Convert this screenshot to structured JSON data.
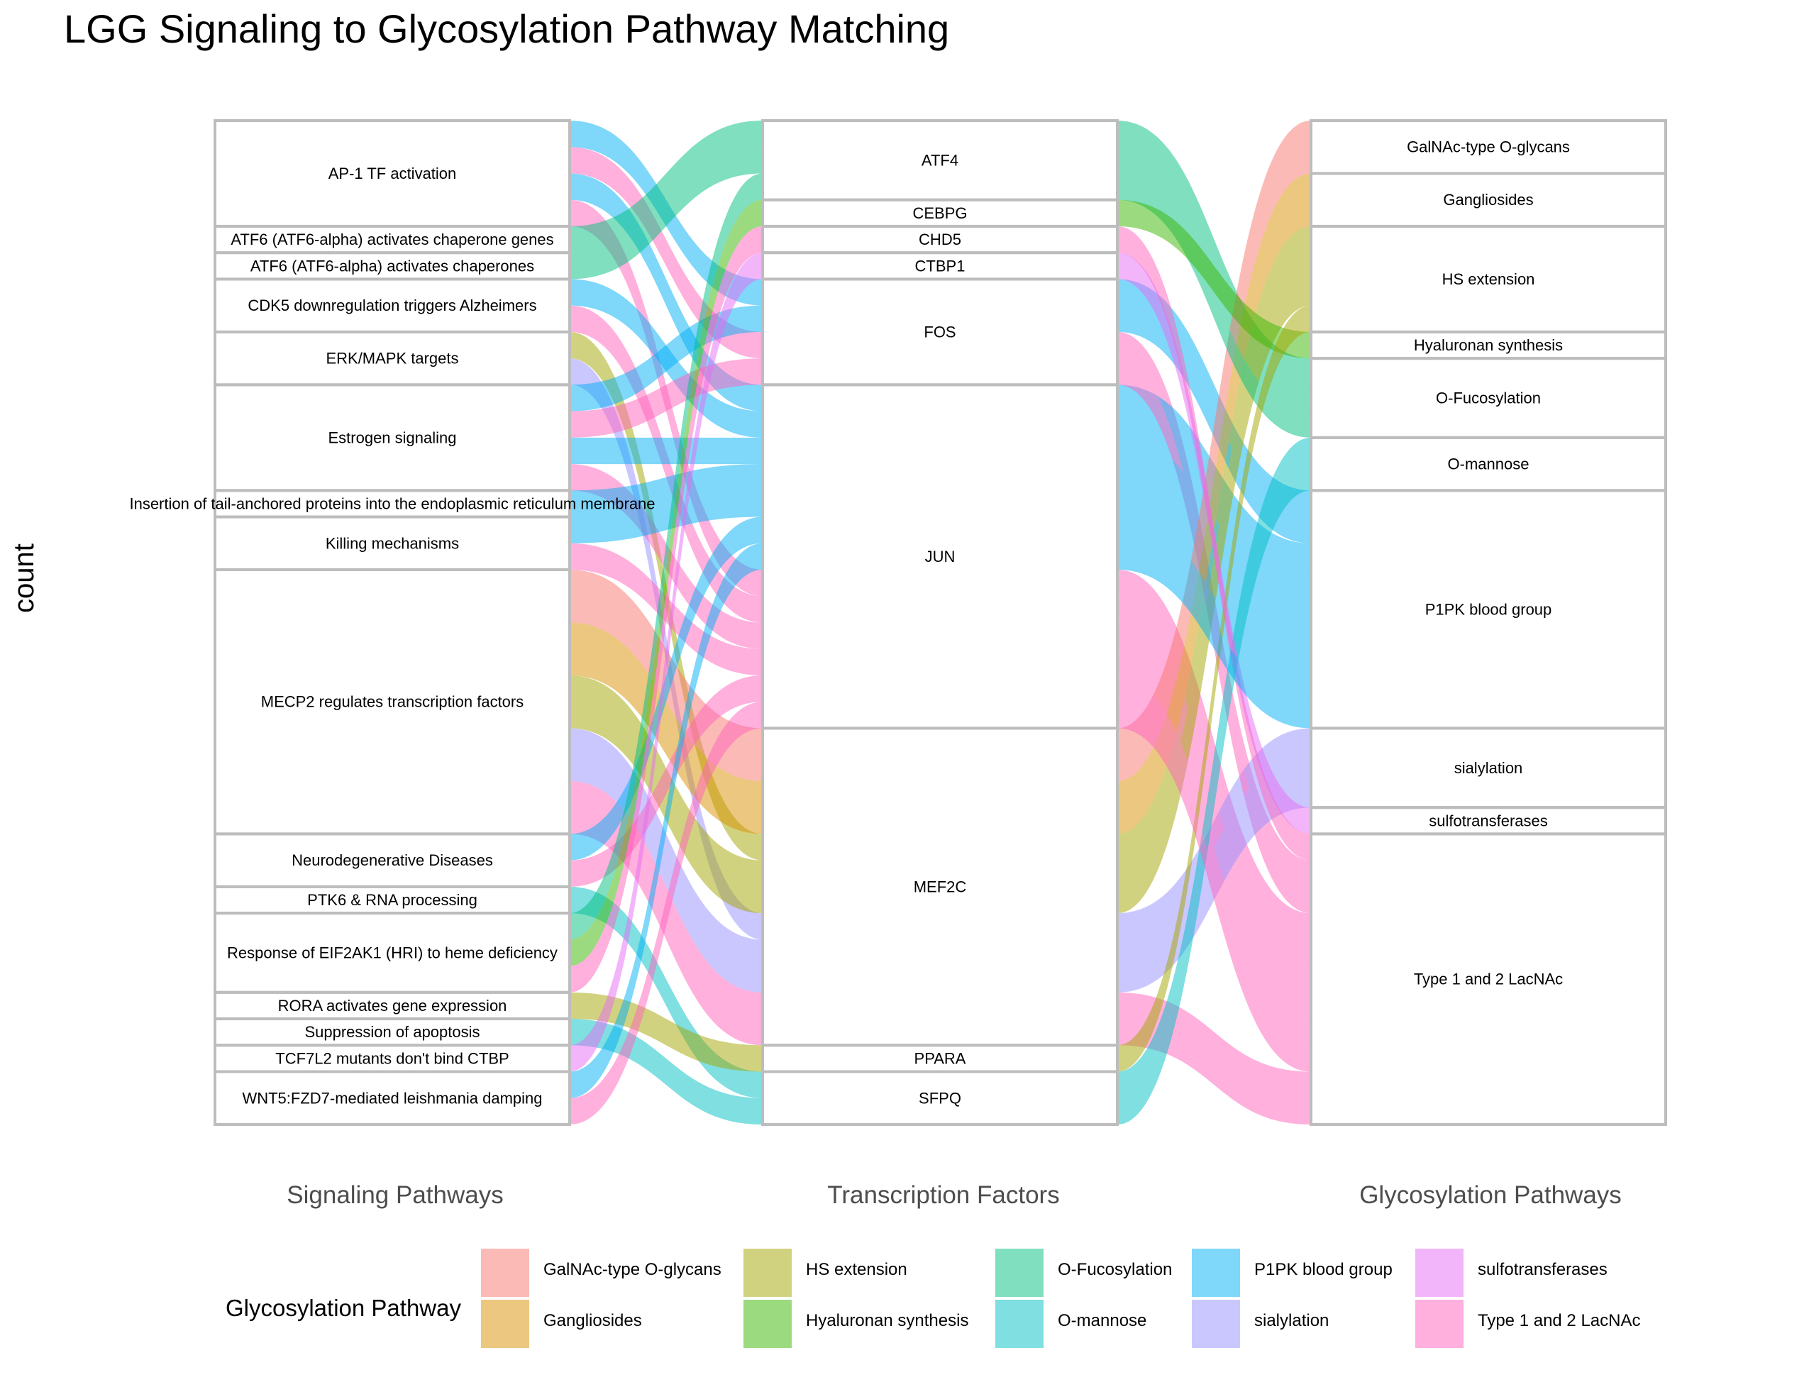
{
  "title": "LGG Signaling to Glycosylation Pathway Matching",
  "chart_data": {
    "type": "alluvial",
    "title": "LGG Signaling to Glycosylation Pathway Matching",
    "ylabel": "count",
    "axes": [
      "Signaling Pathways",
      "Transcription Factors",
      "Glycosylation Pathways"
    ],
    "legend_title": "Glycosylation Pathway",
    "legend_position": "bottom",
    "colors": {
      "GalNAc-type O-glycans": "#f8766d",
      "Gangliosides": "#d89000",
      "HS extension": "#a3a500",
      "Hyaluronan synthesis": "#39b600",
      "O-Fucosylation": "#00bf7d",
      "O-mannose": "#00bfc4",
      "P1PK blood group": "#00b0f6",
      "sialylation": "#9590ff",
      "sulfotransferases": "#e76bf3",
      "Type 1 and 2 LacNAc": "#ff62bc"
    },
    "signaling": [
      "AP-1 TF activation",
      "ATF6 (ATF6-alpha) activates chaperone genes",
      "ATF6 (ATF6-alpha) activates chaperones",
      "CDK5 downregulation triggers Alzheimers",
      "ERK/MAPK targets",
      "Estrogen signaling",
      "Insertion of tail-anchored proteins into the endoplasmic reticulum membrane",
      "Killing mechanisms",
      "MECP2 regulates transcription factors",
      "Neurodegenerative Diseases",
      "PTK6 & RNA processing",
      "Response of EIF2AK1 (HRI) to heme deficiency",
      "RORA activates gene expression",
      "Suppression of apoptosis",
      "TCF7L2 mutants don't bind CTBP",
      "WNT5:FZD7-mediated leishmania damping"
    ],
    "transcription_factors": [
      "ATF4",
      "CEBPG",
      "CHD5",
      "CTBP1",
      "FOS",
      "JUN",
      "MEF2C",
      "PPARA",
      "SFPQ"
    ],
    "glycosylation": [
      "GalNAc-type O-glycans",
      "Gangliosides",
      "HS extension",
      "Hyaluronan synthesis",
      "O-Fucosylation",
      "O-mannose",
      "P1PK blood group",
      "sialylation",
      "sulfotransferases",
      "Type 1 and 2 LacNAc"
    ],
    "flows": [
      {
        "s": "AP-1 TF activation",
        "t": "FOS",
        "g": "P1PK blood group",
        "n": 1
      },
      {
        "s": "AP-1 TF activation",
        "t": "FOS",
        "g": "Type 1 and 2 LacNAc",
        "n": 1
      },
      {
        "s": "AP-1 TF activation",
        "t": "JUN",
        "g": "P1PK blood group",
        "n": 1
      },
      {
        "s": "AP-1 TF activation",
        "t": "JUN",
        "g": "Type 1 and 2 LacNAc",
        "n": 1
      },
      {
        "s": "ATF6 (ATF6-alpha) activates chaperone genes",
        "t": "ATF4",
        "g": "O-Fucosylation",
        "n": 1
      },
      {
        "s": "ATF6 (ATF6-alpha) activates chaperones",
        "t": "ATF4",
        "g": "O-Fucosylation",
        "n": 1
      },
      {
        "s": "CDK5 downregulation triggers Alzheimers",
        "t": "JUN",
        "g": "P1PK blood group",
        "n": 1
      },
      {
        "s": "CDK5 downregulation triggers Alzheimers",
        "t": "JUN",
        "g": "Type 1 and 2 LacNAc",
        "n": 1
      },
      {
        "s": "ERK/MAPK targets",
        "t": "MEF2C",
        "g": "HS extension",
        "n": 1
      },
      {
        "s": "ERK/MAPK targets",
        "t": "MEF2C",
        "g": "sialylation",
        "n": 1
      },
      {
        "s": "Estrogen signaling",
        "t": "FOS",
        "g": "P1PK blood group",
        "n": 1
      },
      {
        "s": "Estrogen signaling",
        "t": "FOS",
        "g": "Type 1 and 2 LacNAc",
        "n": 1
      },
      {
        "s": "Estrogen signaling",
        "t": "JUN",
        "g": "P1PK blood group",
        "n": 1
      },
      {
        "s": "Estrogen signaling",
        "t": "JUN",
        "g": "Type 1 and 2 LacNAc",
        "n": 1
      },
      {
        "s": "Insertion of tail-anchored proteins into the endoplasmic reticulum membrane",
        "t": "JUN",
        "g": "P1PK blood group",
        "n": 1
      },
      {
        "s": "Killing mechanisms",
        "t": "JUN",
        "g": "P1PK blood group",
        "n": 1
      },
      {
        "s": "Killing mechanisms",
        "t": "JUN",
        "g": "Type 1 and 2 LacNAc",
        "n": 1
      },
      {
        "s": "MECP2 regulates transcription factors",
        "t": "MEF2C",
        "g": "GalNAc-type O-glycans",
        "n": 2
      },
      {
        "s": "MECP2 regulates transcription factors",
        "t": "MEF2C",
        "g": "Gangliosides",
        "n": 2
      },
      {
        "s": "MECP2 regulates transcription factors",
        "t": "MEF2C",
        "g": "HS extension",
        "n": 2
      },
      {
        "s": "MECP2 regulates transcription factors",
        "t": "MEF2C",
        "g": "sialylation",
        "n": 2
      },
      {
        "s": "MECP2 regulates transcription factors",
        "t": "MEF2C",
        "g": "Type 1 and 2 LacNAc",
        "n": 2
      },
      {
        "s": "Neurodegenerative Diseases",
        "t": "JUN",
        "g": "P1PK blood group",
        "n": 1
      },
      {
        "s": "Neurodegenerative Diseases",
        "t": "JUN",
        "g": "Type 1 and 2 LacNAc",
        "n": 1
      },
      {
        "s": "PTK6 & RNA processing",
        "t": "SFPQ",
        "g": "O-mannose",
        "n": 1
      },
      {
        "s": "Response of EIF2AK1 (HRI) to heme deficiency",
        "t": "ATF4",
        "g": "O-Fucosylation",
        "n": 1
      },
      {
        "s": "Response of EIF2AK1 (HRI) to heme deficiency",
        "t": "CEBPG",
        "g": "Hyaluronan synthesis",
        "n": 1
      },
      {
        "s": "Response of EIF2AK1 (HRI) to heme deficiency",
        "t": "CHD5",
        "g": "Type 1 and 2 LacNAc",
        "n": 1
      },
      {
        "s": "RORA activates gene expression",
        "t": "PPARA",
        "g": "HS extension",
        "n": 1
      },
      {
        "s": "Suppression of apoptosis",
        "t": "SFPQ",
        "g": "O-mannose",
        "n": 1
      },
      {
        "s": "TCF7L2 mutants don't bind CTBP",
        "t": "CTBP1",
        "g": "sulfotransferases",
        "n": 1
      },
      {
        "s": "WNT5:FZD7-mediated leishmania damping",
        "t": "JUN",
        "g": "P1PK blood group",
        "n": 1
      },
      {
        "s": "WNT5:FZD7-mediated leishmania damping",
        "t": "JUN",
        "g": "Type 1 and 2 LacNAc",
        "n": 1
      }
    ]
  }
}
